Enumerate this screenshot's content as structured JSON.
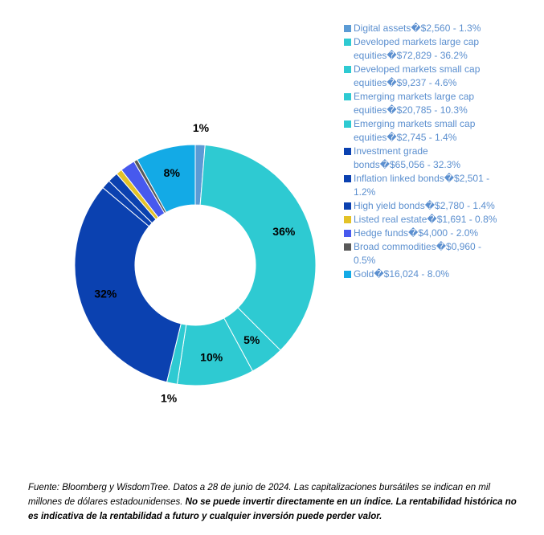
{
  "chart_data": {
    "type": "donut",
    "categories": [
      "Digital assets�$2,560 - 1.3%",
      "Developed markets large cap equities�$72,829 - 36.2%",
      "Developed markets small cap equities�$9,237 - 4.6%",
      "Emerging markets large cap equities�$20,785 - 10.3%",
      "Emerging markets small cap equities�$2,745 - 1.4%",
      "Investment grade bonds�$65,056 - 32.3%",
      "Inflation linked bonds�$2,501 - 1.2%",
      "High yield bonds�$2,780 - 1.4%",
      "Listed real estate�$1,691 - 0.8%",
      "Hedge funds�$4,000 - 2.0%",
      "Broad commodities�$0,960 - 0.5%",
      "Gold�$16,024 - 8.0%"
    ],
    "values": [
      1.3,
      36.2,
      4.6,
      10.3,
      1.4,
      32.3,
      1.2,
      1.4,
      0.8,
      2.0,
      0.5,
      8.0
    ],
    "value_labels": [
      "1%",
      "36%",
      "5%",
      "10%",
      "1%",
      "32%",
      null,
      null,
      null,
      null,
      null,
      "8%"
    ],
    "colors": [
      "#5b9bd5",
      "#2ecad2",
      "#2ecad2",
      "#2ecad2",
      "#2ecad2",
      "#0b41b0",
      "#0b41b0",
      "#0b41b0",
      "#e3c228",
      "#4759ee",
      "#595959",
      "#13aae6"
    ],
    "source_text": "Fuente: Bloomberg y WisdomTree. Datos a 28 de junio de 2024. Las capitalizaciones bursátiles se indican en mil millones de dólares estadounidenses.",
    "source_emphasis": "No se puede invertir directamente en un índice. La rentabilidad histórica no es indicativa de la rentabilidad a futuro y cualquier inversión puede perder valor."
  }
}
